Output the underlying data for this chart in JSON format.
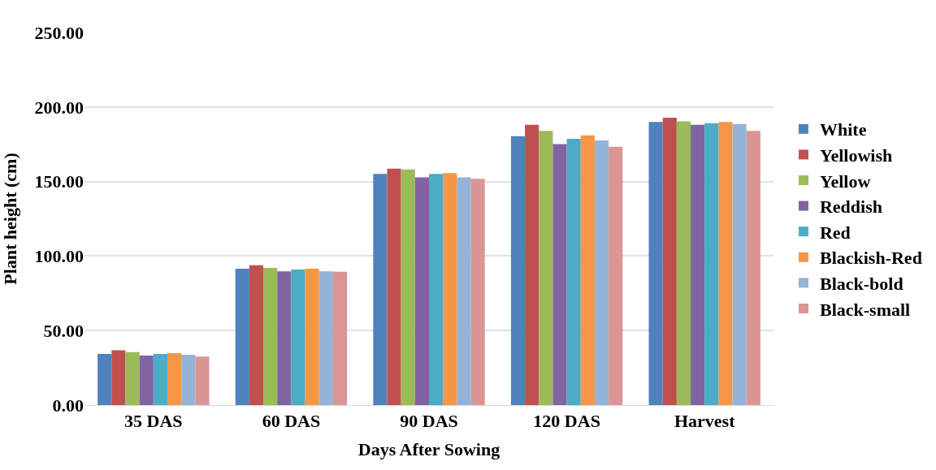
{
  "chart_data": {
    "type": "bar",
    "xlabel": "Days After Sowing",
    "ylabel": "Plant height (cm)",
    "categories": [
      "35 DAS",
      "60 DAS",
      "90 DAS",
      "120 DAS",
      "Harvest"
    ],
    "series": [
      {
        "name": "White",
        "color": "#4f81bd",
        "values": [
          34.3,
          91.5,
          155.1,
          180.4,
          189.9
        ]
      },
      {
        "name": "Yellowish",
        "color": "#c0504d",
        "values": [
          36.7,
          93.8,
          158.6,
          188.1,
          192.8
        ]
      },
      {
        "name": "Yellow",
        "color": "#9bbb59",
        "values": [
          35.5,
          92.0,
          158.1,
          184.0,
          190.4
        ]
      },
      {
        "name": "Reddish",
        "color": "#8064a2",
        "values": [
          33.2,
          89.7,
          152.8,
          175.1,
          188.1
        ]
      },
      {
        "name": "Red",
        "color": "#4bacc6",
        "values": [
          34.3,
          90.9,
          155.1,
          178.6,
          189.2
        ]
      },
      {
        "name": "Blackish-Red",
        "color": "#f79646",
        "values": [
          34.9,
          91.5,
          155.7,
          181.0,
          189.9
        ]
      },
      {
        "name": "Black-bold",
        "color": "#95b3d7",
        "values": [
          33.8,
          89.7,
          152.8,
          177.5,
          188.6
        ]
      },
      {
        "name": "Black-small",
        "color": "#da9694",
        "values": [
          32.6,
          89.5,
          151.8,
          173.4,
          184.0
        ]
      }
    ],
    "ylim": [
      0,
      250
    ],
    "yticks": [
      {
        "value": 0,
        "label": "0.00"
      },
      {
        "value": 50,
        "label": "50.00"
      },
      {
        "value": 100,
        "label": "100.00"
      },
      {
        "value": 150,
        "label": "150.00"
      },
      {
        "value": 200,
        "label": "200.00"
      },
      {
        "value": 250,
        "label": "250.00"
      }
    ],
    "grid": "y",
    "legend": "right"
  }
}
